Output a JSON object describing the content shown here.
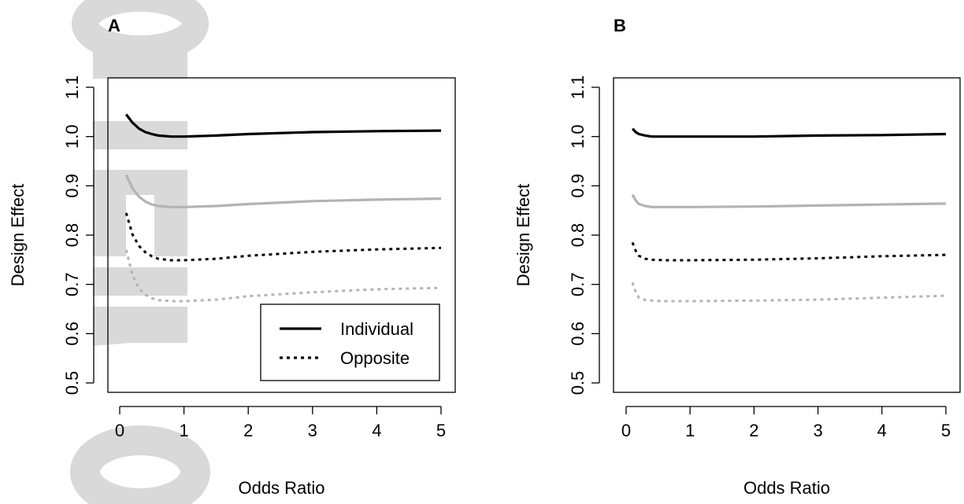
{
  "watermark": {
    "text": "Author Manuscript",
    "color": "#d9d9d9"
  },
  "colors": {
    "black": "#000000",
    "grey": "#b3b3b3"
  },
  "chart_data": [
    {
      "type": "line",
      "panel_label": "A",
      "xlabel": "Odds Ratio",
      "ylabel": "Design Effect",
      "xlim": [
        0,
        5
      ],
      "ylim": [
        0.5,
        1.1
      ],
      "xticks": [
        "0",
        "1",
        "2",
        "3",
        "4",
        "5"
      ],
      "yticks": [
        "0.5",
        "0.6",
        "0.7",
        "0.8",
        "0.9",
        "1.0",
        "1.1"
      ],
      "legend": {
        "position": "bottom-right",
        "entries": [
          {
            "label": "Individual",
            "style": "solid"
          },
          {
            "label": "Opposite",
            "style": "dotted"
          }
        ]
      },
      "series": [
        {
          "style": "solid",
          "color": "#000000",
          "x": [
            0.1,
            0.2,
            0.3,
            0.4,
            0.5,
            0.6,
            0.8,
            1,
            1.5,
            2,
            3,
            4,
            5
          ],
          "y": [
            1.045,
            1.028,
            1.016,
            1.009,
            1.005,
            1.002,
            1.0,
            1.0,
            1.002,
            1.005,
            1.009,
            1.011,
            1.012
          ]
        },
        {
          "style": "solid",
          "color": "#b3b3b3",
          "x": [
            0.1,
            0.2,
            0.3,
            0.4,
            0.5,
            0.6,
            0.8,
            1,
            1.5,
            2,
            3,
            4,
            5
          ],
          "y": [
            0.922,
            0.895,
            0.878,
            0.868,
            0.862,
            0.859,
            0.857,
            0.857,
            0.859,
            0.863,
            0.869,
            0.872,
            0.874
          ]
        },
        {
          "style": "dotted",
          "color": "#000000",
          "x": [
            0.1,
            0.2,
            0.3,
            0.4,
            0.5,
            0.6,
            0.8,
            1,
            1.5,
            2,
            3,
            4,
            5
          ],
          "y": [
            0.845,
            0.801,
            0.778,
            0.765,
            0.757,
            0.752,
            0.749,
            0.749,
            0.752,
            0.758,
            0.766,
            0.771,
            0.774
          ]
        },
        {
          "style": "dotted",
          "color": "#b3b3b3",
          "x": [
            0.1,
            0.2,
            0.3,
            0.4,
            0.5,
            0.6,
            0.8,
            1,
            1.5,
            2,
            3,
            4,
            5
          ],
          "y": [
            0.77,
            0.718,
            0.692,
            0.679,
            0.672,
            0.668,
            0.666,
            0.666,
            0.669,
            0.676,
            0.684,
            0.69,
            0.693
          ]
        }
      ]
    },
    {
      "type": "line",
      "panel_label": "B",
      "xlabel": "Odds Ratio",
      "ylabel": "Design Effect",
      "xlim": [
        0,
        5
      ],
      "ylim": [
        0.5,
        1.1
      ],
      "xticks": [
        "0",
        "1",
        "2",
        "3",
        "4",
        "5"
      ],
      "yticks": [
        "0.5",
        "0.6",
        "0.7",
        "0.8",
        "0.9",
        "1.0",
        "1.1"
      ],
      "series": [
        {
          "style": "solid",
          "color": "#000000",
          "x": [
            0.1,
            0.15,
            0.2,
            0.3,
            0.4,
            0.6,
            1,
            2,
            3,
            4,
            5
          ],
          "y": [
            1.016,
            1.009,
            1.005,
            1.002,
            1.0,
            1.0,
            1.0,
            1.0,
            1.002,
            1.003,
            1.005
          ]
        },
        {
          "style": "solid",
          "color": "#b3b3b3",
          "x": [
            0.1,
            0.15,
            0.2,
            0.3,
            0.4,
            0.6,
            1,
            2,
            3,
            4,
            5
          ],
          "y": [
            0.882,
            0.87,
            0.863,
            0.859,
            0.857,
            0.857,
            0.857,
            0.858,
            0.86,
            0.862,
            0.864
          ]
        },
        {
          "style": "dotted",
          "color": "#000000",
          "x": [
            0.1,
            0.15,
            0.2,
            0.3,
            0.4,
            0.6,
            1,
            2,
            3,
            4,
            5
          ],
          "y": [
            0.785,
            0.768,
            0.758,
            0.752,
            0.75,
            0.749,
            0.749,
            0.75,
            0.753,
            0.757,
            0.76
          ]
        },
        {
          "style": "dotted",
          "color": "#b3b3b3",
          "x": [
            0.1,
            0.15,
            0.2,
            0.3,
            0.4,
            0.6,
            1,
            2,
            3,
            4,
            5
          ],
          "y": [
            0.704,
            0.684,
            0.673,
            0.668,
            0.667,
            0.666,
            0.666,
            0.667,
            0.669,
            0.673,
            0.677
          ]
        }
      ]
    }
  ]
}
